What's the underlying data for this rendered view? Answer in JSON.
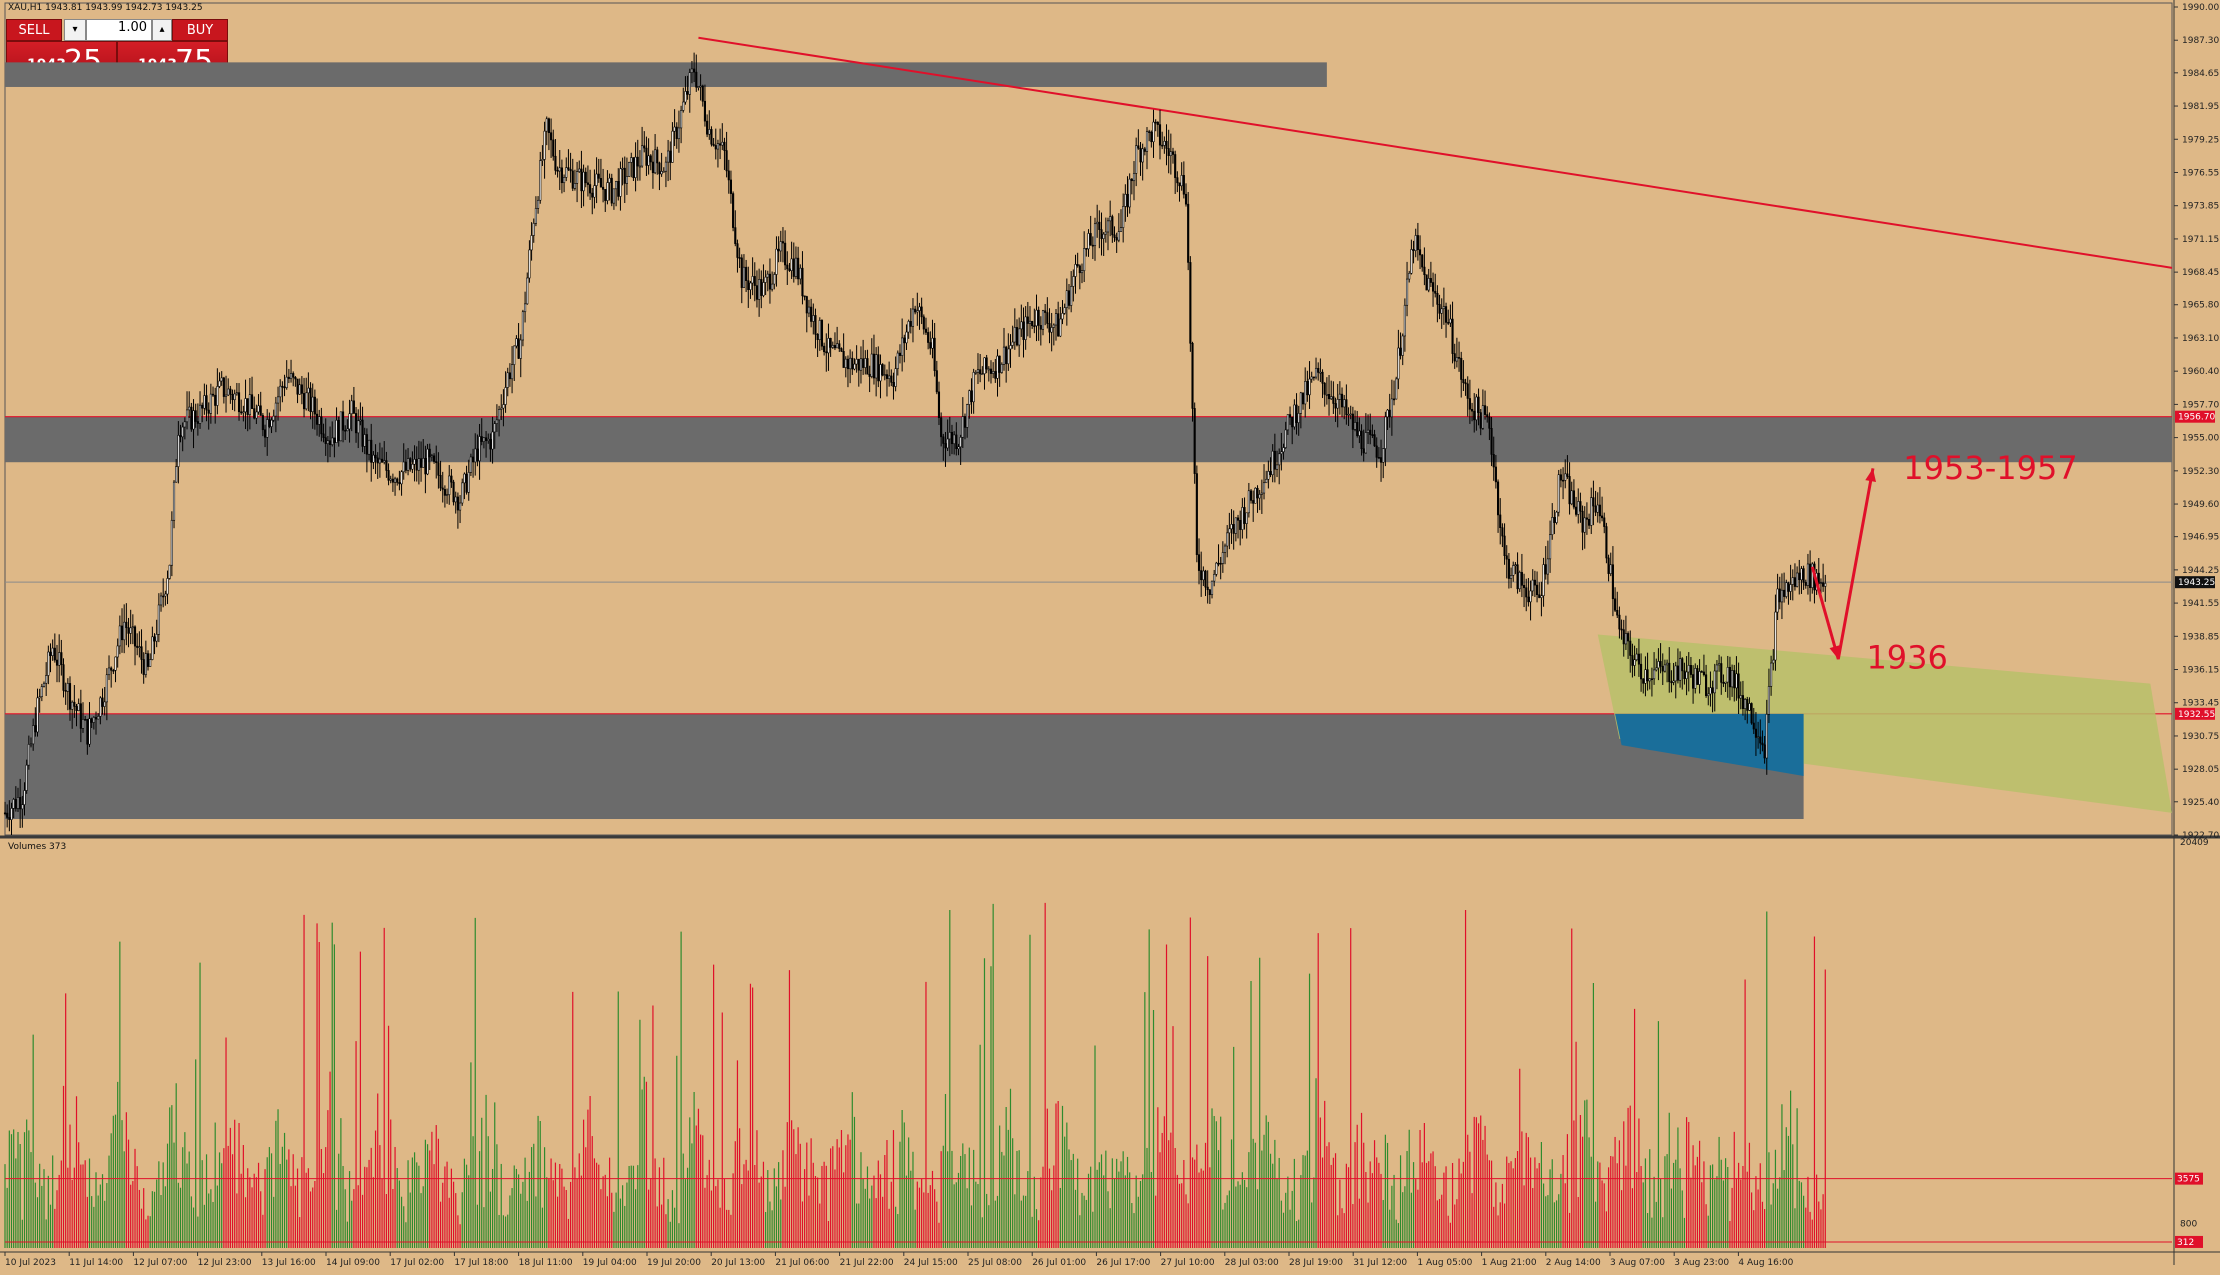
{
  "symbol_info": "XAU,H1  1943.81 1943.99 1942.73 1943.25",
  "volume_label": "Volumes 373",
  "trade_panel": {
    "sell_label": "SELL",
    "buy_label": "BUY",
    "lot_value": "1.00",
    "sell_price_small": "1943",
    "sell_price_big": "25",
    "buy_price_small": "1943",
    "buy_price_big": "75",
    "down_glyph": "▾",
    "up_glyph": "▴"
  },
  "colors": {
    "background": "#deb887",
    "zone_gray": "#6b6b6b",
    "accent_red": "#e0102a",
    "channel_green": "#b8c06a",
    "zone_blue": "#1a6e9a",
    "volume_green": "#2e8b2e",
    "volume_red": "#e0102a",
    "candle": "#000000"
  },
  "chart_data": {
    "type": "candlestick",
    "price_axis": {
      "ylim": [
        1922.7,
        1990.0
      ],
      "ticks": [
        "1990.00",
        "1987.30",
        "1984.65",
        "1981.95",
        "1979.25",
        "1976.55",
        "1973.85",
        "1971.15",
        "1968.45",
        "1965.80",
        "1963.10",
        "1960.40",
        "1957.70",
        "1955.00",
        "1952.30",
        "1949.60",
        "1946.95",
        "1944.25",
        "1941.55",
        "1938.85",
        "1936.15",
        "1933.45",
        "1930.75",
        "1928.05",
        "1925.40",
        "1922.70"
      ],
      "current_price": "1943.25",
      "level_labels": [
        {
          "price": 1956.7,
          "text": "1956.70"
        },
        {
          "price": 1932.55,
          "text": "1932.55"
        }
      ]
    },
    "x_axis_labels": [
      "10 Jul 2023",
      "11 Jul 14:00",
      "12 Jul 07:00",
      "12 Jul 23:00",
      "13 Jul 16:00",
      "14 Jul 09:00",
      "17 Jul 02:00",
      "17 Jul 18:00",
      "18 Jul 11:00",
      "19 Jul 04:00",
      "19 Jul 20:00",
      "20 Jul 13:00",
      "21 Jul 06:00",
      "21 Jul 22:00",
      "24 Jul 15:00",
      "25 Jul 08:00",
      "26 Jul 01:00",
      "26 Jul 17:00",
      "27 Jul 10:00",
      "28 Jul 03:00",
      "28 Jul 19:00",
      "31 Jul 12:00",
      "1 Aug 05:00",
      "1 Aug 21:00",
      "2 Aug 14:00",
      "3 Aug 07:00",
      "3 Aug 23:00",
      "4 Aug 16:00"
    ],
    "close_path": [
      [
        0,
        1924.5
      ],
      [
        8,
        1926
      ],
      [
        15,
        1933
      ],
      [
        22,
        1938
      ],
      [
        30,
        1934
      ],
      [
        38,
        1931
      ],
      [
        45,
        1934
      ],
      [
        55,
        1940
      ],
      [
        66,
        1936
      ],
      [
        76,
        1945
      ],
      [
        80,
        1956
      ],
      [
        90,
        1957
      ],
      [
        100,
        1959
      ],
      [
        110,
        1958
      ],
      [
        120,
        1956
      ],
      [
        130,
        1960
      ],
      [
        140,
        1958
      ],
      [
        150,
        1955
      ],
      [
        160,
        1957
      ],
      [
        170,
        1953
      ],
      [
        180,
        1952
      ],
      [
        195,
        1953
      ],
      [
        210,
        1950
      ],
      [
        218,
        1954
      ],
      [
        225,
        1955
      ],
      [
        232,
        1960
      ],
      [
        238,
        1963
      ],
      [
        244,
        1973
      ],
      [
        250,
        1980
      ],
      [
        255,
        1977
      ],
      [
        265,
        1976
      ],
      [
        280,
        1975
      ],
      [
        295,
        1978
      ],
      [
        305,
        1977
      ],
      [
        318,
        1985
      ],
      [
        325,
        1980
      ],
      [
        332,
        1978
      ],
      [
        340,
        1968
      ],
      [
        350,
        1967
      ],
      [
        358,
        1970
      ],
      [
        365,
        1969
      ],
      [
        372,
        1965
      ],
      [
        380,
        1962
      ],
      [
        390,
        1961
      ],
      [
        400,
        1961
      ],
      [
        410,
        1960
      ],
      [
        420,
        1966
      ],
      [
        428,
        1962
      ],
      [
        432,
        1955
      ],
      [
        440,
        1955
      ],
      [
        448,
        1960
      ],
      [
        458,
        1961
      ],
      [
        466,
        1963
      ],
      [
        476,
        1965
      ],
      [
        486,
        1964
      ],
      [
        495,
        1969
      ],
      [
        505,
        1972
      ],
      [
        515,
        1972
      ],
      [
        522,
        1978
      ],
      [
        530,
        1980
      ],
      [
        538,
        1978
      ],
      [
        545,
        1975
      ],
      [
        550,
        1945
      ],
      [
        556,
        1943
      ],
      [
        565,
        1947
      ],
      [
        575,
        1950
      ],
      [
        585,
        1953
      ],
      [
        595,
        1957
      ],
      [
        605,
        1960
      ],
      [
        615,
        1958
      ],
      [
        625,
        1955
      ],
      [
        635,
        1954
      ],
      [
        642,
        1960
      ],
      [
        650,
        1971
      ],
      [
        655,
        1968
      ],
      [
        665,
        1965
      ],
      [
        675,
        1958
      ],
      [
        685,
        1956
      ],
      [
        692,
        1945
      ],
      [
        700,
        1943
      ],
      [
        708,
        1942
      ],
      [
        718,
        1952
      ],
      [
        728,
        1948
      ],
      [
        735,
        1950
      ],
      [
        740,
        1945
      ],
      [
        745,
        1939
      ],
      [
        755,
        1936
      ],
      [
        765,
        1936
      ],
      [
        775,
        1936
      ],
      [
        785,
        1935
      ],
      [
        795,
        1936
      ],
      [
        805,
        1933
      ],
      [
        812,
        1930
      ],
      [
        818,
        1942
      ],
      [
        830,
        1944
      ],
      [
        840,
        1943.25
      ]
    ],
    "zones": [
      {
        "from_bar": 0,
        "to_bar": 610,
        "low": 1983.5,
        "high": 1985.5
      },
      {
        "from_bar": 0,
        "to_bar": 1000,
        "low": 1953.0,
        "high": 1956.7
      },
      {
        "from_bar": 0,
        "to_bar": 830,
        "low": 1924.0,
        "high": 1932.55
      }
    ],
    "trendline": {
      "from": [
        320,
        1987.5
      ],
      "to": [
        1000,
        1968.8
      ]
    },
    "channel": {
      "upper": [
        [
          735,
          1939
        ],
        [
          990,
          1935
        ]
      ],
      "lower": [
        [
          745,
          1930.5
        ],
        [
          1000,
          1924.5
        ]
      ]
    },
    "blue_zone": {
      "from_bar": 743,
      "to_bar": 830,
      "top": 1932.55,
      "bottom_left": 1930,
      "bottom_right": 1927.5
    },
    "projection": {
      "points": [
        [
          834,
          1944.5
        ],
        [
          846,
          1937
        ],
        [
          862,
          1952.5
        ]
      ],
      "labels": [
        {
          "text": "1953-1957",
          "bar": 876,
          "price": 1952.6
        },
        {
          "text": "1936",
          "bar": 859,
          "price": 1937.2
        }
      ]
    },
    "volumes": {
      "ylim": [
        0,
        20409
      ],
      "ticks": [
        "20409"
      ],
      "levels": [
        {
          "value": 3575,
          "text": "3575"
        },
        {
          "value": 312,
          "text": "312"
        }
      ],
      "extra_tick": "800"
    }
  }
}
